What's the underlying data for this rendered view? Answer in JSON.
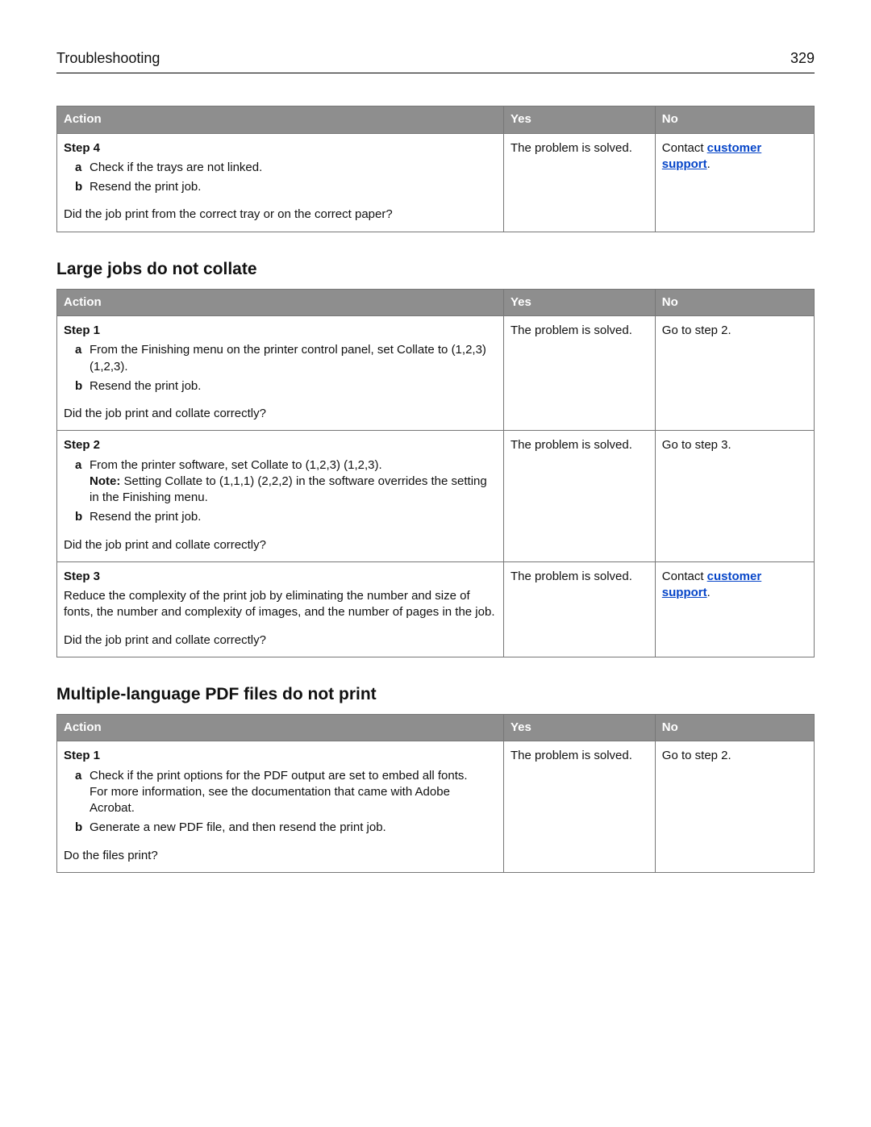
{
  "page_header": {
    "title": "Troubleshooting",
    "page_number": "329"
  },
  "table_headers": {
    "action": "Action",
    "yes": "Yes",
    "no": "No"
  },
  "colors": {
    "header_bg": "#8e8e8e",
    "header_text": "#ffffff",
    "border": "#777777",
    "link": "#0645c8",
    "body_text": "#111111"
  },
  "table1": {
    "row1": {
      "step_title": "Step 4",
      "a_text": "Check if the trays are not linked.",
      "b_text": "Resend the print job.",
      "question": "Did the job print from the correct tray or on the correct paper?",
      "yes": "The problem is solved.",
      "no_prefix": "Contact ",
      "no_link": "customer support",
      "no_suffix": "."
    }
  },
  "section2_title": "Large jobs do not collate",
  "table2": {
    "row1": {
      "step_title": "Step 1",
      "a_text": "From the Finishing menu on the printer control panel, set Collate to (1,2,3) (1,2,3).",
      "b_text": "Resend the print job.",
      "question": "Did the job print and collate correctly?",
      "yes": "The problem is solved.",
      "no": "Go to step 2."
    },
    "row2": {
      "step_title": "Step 2",
      "a_text": "From the printer software, set Collate to (1,2,3) (1,2,3).",
      "a_note_label": "Note:",
      "a_note_text": " Setting Collate to (1,1,1) (2,2,2) in the software overrides the setting in the Finishing menu.",
      "b_text": "Resend the print job.",
      "question": "Did the job print and collate correctly?",
      "yes": "The problem is solved.",
      "no": "Go to step 3."
    },
    "row3": {
      "step_title": "Step 3",
      "body": "Reduce the complexity of the print job by eliminating the number and size of fonts, the number and complexity of images, and the number of pages in the job.",
      "question": "Did the job print and collate correctly?",
      "yes": "The problem is solved.",
      "no_prefix": "Contact ",
      "no_link": "customer support",
      "no_suffix": "."
    }
  },
  "section3_title": "Multiple‑language PDF files do not print",
  "table3": {
    "row1": {
      "step_title": "Step 1",
      "a_text": "Check if the print options for the PDF output are set to embed all fonts.",
      "a_extra": "For more information, see the documentation that came with Adobe Acrobat.",
      "b_text": "Generate a new PDF file, and then resend the print job.",
      "question": "Do the files print?",
      "yes": "The problem is solved.",
      "no": "Go to step 2."
    }
  }
}
